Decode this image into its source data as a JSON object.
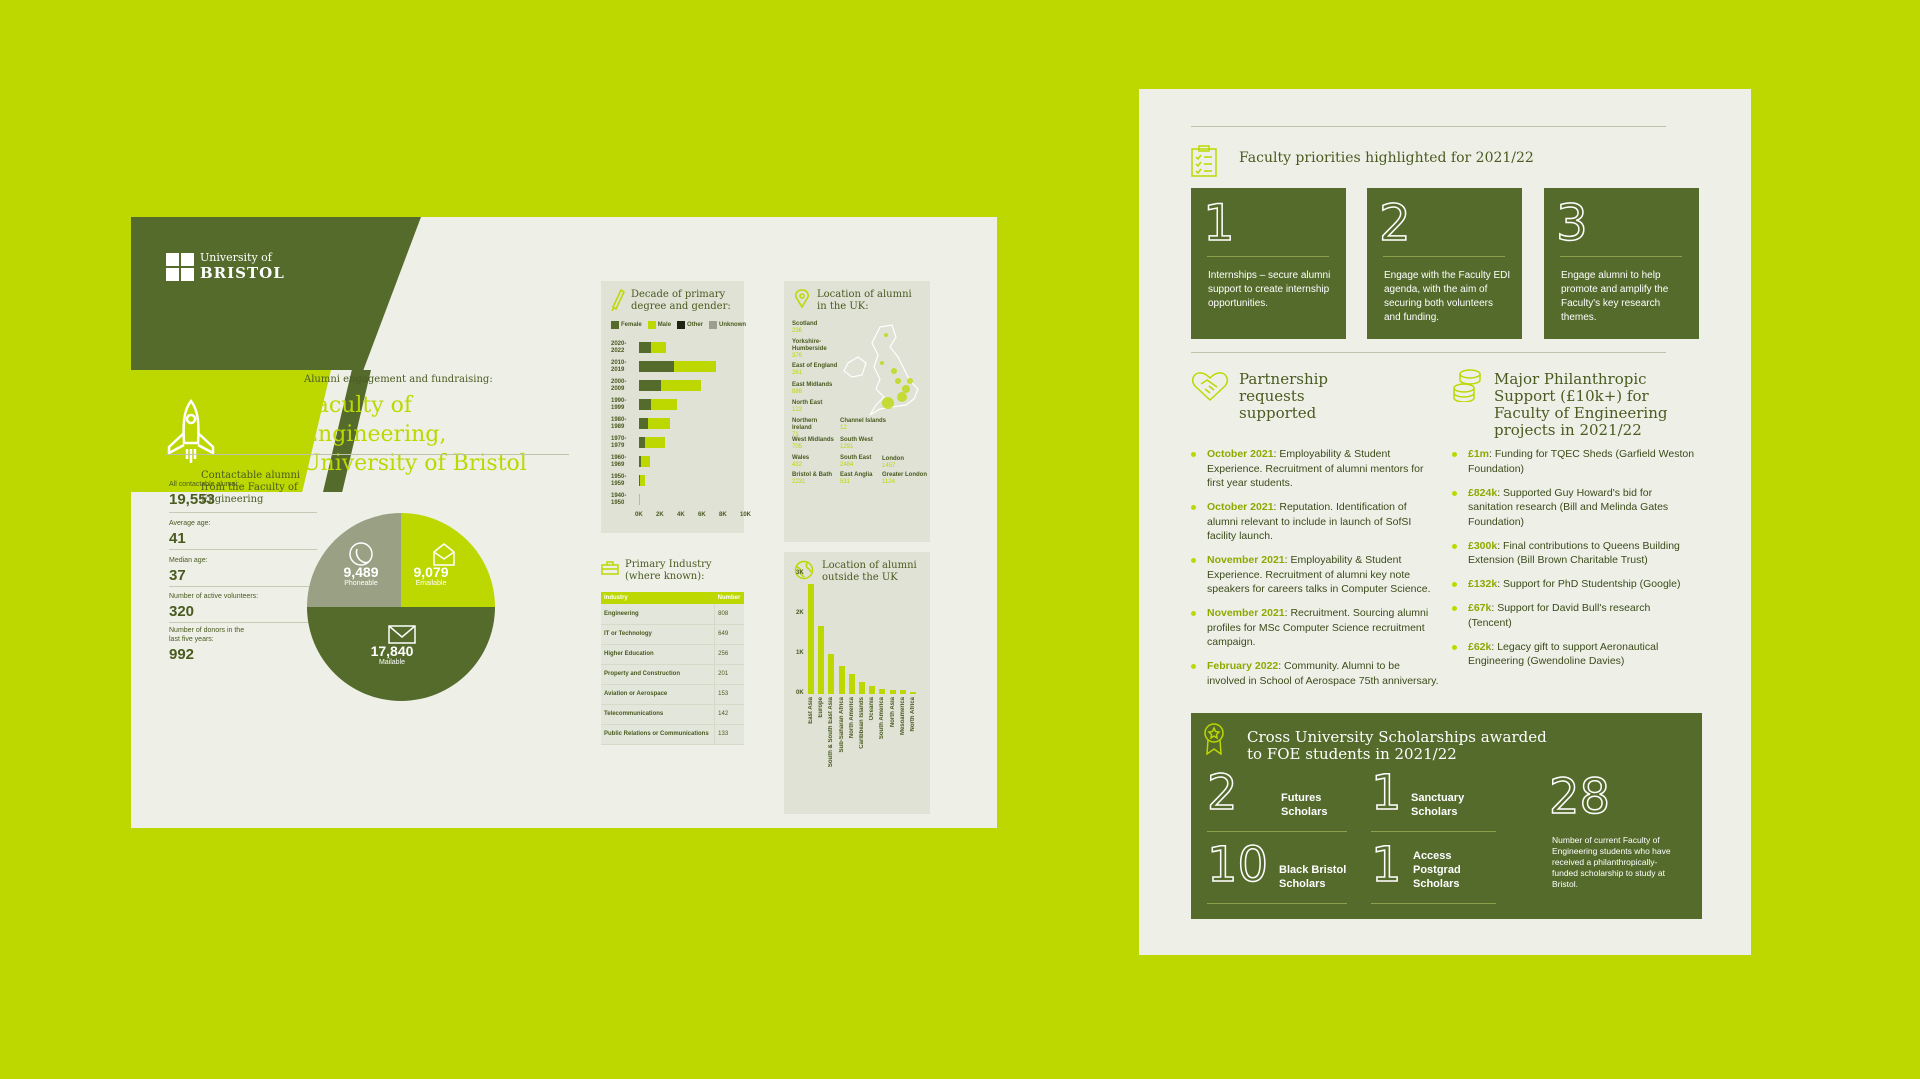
{
  "sheet1": {
    "logo": {
      "line1": "University of",
      "line2": "BRISTOL"
    },
    "subtitle": "Alumni engagement and fundraising:",
    "title": "Faculty of Engineering, University of Bristol",
    "contact_heading": "Contactable alumni from the Faculty of Engineering",
    "stats": [
      {
        "label": "All contactable alumni:",
        "value": "19,553"
      },
      {
        "label": "Average age:",
        "value": "41"
      },
      {
        "label": "Median age:",
        "value": "37"
      },
      {
        "label": "Number of active volunteers:",
        "value": "320"
      },
      {
        "label": "Number of donors in the last five years:",
        "value": "992"
      }
    ],
    "pie": [
      {
        "value": "9,489",
        "label": "Phoneable",
        "icon": "phone-icon",
        "color": "#9aa083"
      },
      {
        "value": "9,079",
        "label": "Emailable",
        "icon": "email-icon",
        "color": "#bcd800"
      },
      {
        "value": "17,840",
        "label": "Mailable",
        "icon": "mail-icon",
        "color": "#546b2c"
      }
    ],
    "decade": {
      "title": "Decade of primary degree and gender:",
      "legend": [
        {
          "name": "Female",
          "color": "#546b2c"
        },
        {
          "name": "Male",
          "color": "#bcd800"
        },
        {
          "name": "Other",
          "color": "#1e2410"
        },
        {
          "name": "Unknown",
          "color": "#9c9f8e"
        }
      ],
      "rows": [
        {
          "label": "2020- 2022",
          "female": 1.0,
          "male": 1.2
        },
        {
          "label": "2010- 2019",
          "female": 2.8,
          "male": 3.4
        },
        {
          "label": "2000- 2009",
          "female": 1.8,
          "male": 3.2
        },
        {
          "label": "1990- 1999",
          "female": 1.0,
          "male": 2.1
        },
        {
          "label": "1980- 1989",
          "female": 0.7,
          "male": 1.8
        },
        {
          "label": "1970- 1979",
          "female": 0.5,
          "male": 1.6
        },
        {
          "label": "1960- 1969",
          "female": 0.2,
          "male": 0.7
        },
        {
          "label": "1950- 1959",
          "female": 0.1,
          "male": 0.4
        },
        {
          "label": "1940- 1950",
          "female": 0.0,
          "male": 0.1
        }
      ],
      "xticks": [
        "0K",
        "2K",
        "4K",
        "6K",
        "8K",
        "10K"
      ]
    },
    "location_uk": {
      "title": "Location of alumni in the UK:",
      "regions": [
        {
          "name": "Scotland",
          "value": "236"
        },
        {
          "name": "Yorkshire- Humberside",
          "value": "376"
        },
        {
          "name": "East of England",
          "value": "261"
        },
        {
          "name": "East Midlands",
          "value": "886"
        },
        {
          "name": "North East",
          "value": "122"
        },
        {
          "name": "Northern Ireland",
          "value": "71"
        },
        {
          "name": "Channel Islands",
          "value": "12"
        },
        {
          "name": "West Midlands",
          "value": "705"
        },
        {
          "name": "South West",
          "value": "1291"
        },
        {
          "name": "Wales",
          "value": "432"
        },
        {
          "name": "South East",
          "value": "2484"
        },
        {
          "name": "London",
          "value": "1457"
        },
        {
          "name": "Bristol & Bath",
          "value": "2231"
        },
        {
          "name": "East Anglia",
          "value": "531"
        },
        {
          "name": "Greater London",
          "value": "1124"
        }
      ]
    },
    "industry": {
      "title": "Primary Industry (where known):",
      "headers": [
        "Industry",
        "Number"
      ],
      "rows": [
        [
          "Engineering",
          "808"
        ],
        [
          "IT or Technology",
          "649"
        ],
        [
          "Higher Education",
          "256"
        ],
        [
          "Property and Construction",
          "201"
        ],
        [
          "Aviation or Aerospace",
          "153"
        ],
        [
          "Telecommunications",
          "142"
        ],
        [
          "Public Relations or Communications",
          "133"
        ]
      ]
    },
    "location_world": {
      "title": "Location of alumni outside the UK",
      "yticks": [
        "3K",
        "2K",
        "1K",
        "0K"
      ]
    }
  },
  "chart_data": [
    {
      "type": "bar",
      "title": "Decade of primary degree and gender:",
      "categories": [
        "2020-2022",
        "2010-2019",
        "2000-2009",
        "1990-1999",
        "1980-1989",
        "1970-1979",
        "1960-1969",
        "1950-1959",
        "1940-1950"
      ],
      "series": [
        {
          "name": "Female",
          "values": [
            1.0,
            2.8,
            1.8,
            1.0,
            0.7,
            0.5,
            0.2,
            0.1,
            0.0
          ]
        },
        {
          "name": "Male",
          "values": [
            1.2,
            3.4,
            3.2,
            2.1,
            1.8,
            1.6,
            0.7,
            0.4,
            0.1
          ]
        }
      ],
      "xlim": [
        0,
        10
      ],
      "orientation": "horizontal"
    },
    {
      "type": "bar",
      "title": "Location of alumni outside the UK",
      "categories": [
        "East Asia",
        "Europe",
        "South & South East Asia",
        "Sub-Saharan Africa",
        "North America",
        "Caribbean Islands",
        "Oceania",
        "South America",
        "North Asia",
        "Mesoamerica",
        "North Africa"
      ],
      "values": [
        2.75,
        1.7,
        1.0,
        0.7,
        0.5,
        0.3,
        0.2,
        0.12,
        0.1,
        0.1,
        0.05
      ],
      "ylim": [
        0,
        3
      ]
    }
  ],
  "sheet2": {
    "priorities_title": "Faculty priorities highlighted for 2021/22",
    "priorities": [
      {
        "num": "1",
        "text": "Internships – secure alumni support to create internship opportunities."
      },
      {
        "num": "2",
        "text": "Engage with the Faculty EDI agenda, with the aim of securing both volunteers and funding."
      },
      {
        "num": "3",
        "text": "Engage alumni to help promote and amplify the Faculty's key research themes."
      }
    ],
    "partnership_title": "Partnership requests supported",
    "partnership": [
      {
        "date": "October 2021",
        "text": ": Employability & Student Experience. Recruitment of alumni mentors for first year students."
      },
      {
        "date": "October 2021",
        "text": ": Reputation. Identification of alumni relevant to include in launch of SofSI facility launch."
      },
      {
        "date": "November 2021",
        "text": ": Employability & Student Experience. Recruitment of alumni key note speakers for careers talks in Computer Science."
      },
      {
        "date": "November 2021",
        "text": ": Recruitment. Sourcing alumni profiles for MSc Computer Science recruitment campaign."
      },
      {
        "date": "February 2022",
        "text": ": Community. Alumni to be involved in School of Aerospace 75th anniversary."
      }
    ],
    "philanthropic_title": "Major Philanthropic Support (£10k+) for Faculty of Engineering projects in 2021/22",
    "philanthropic": [
      {
        "amount": "£1m",
        "text": ": Funding for TQEC Sheds (Garfield Weston Foundation)"
      },
      {
        "amount": "£824k",
        "text": ": Supported Guy Howard's bid for sanitation research (Bill and Melinda Gates Foundation)"
      },
      {
        "amount": "£300k",
        "text": ": Final contributions to Queens Building Extension (Bill Brown Charitable Trust)"
      },
      {
        "amount": "£132k",
        "text": ": Support for PhD Studentship (Google)"
      },
      {
        "amount": "£67k",
        "text": ": Support for David Bull's research (Tencent)"
      },
      {
        "amount": "£62k",
        "text": ": Legacy gift to support Aeronautical Engineering (Gwendoline Davies)"
      }
    ],
    "scholarships_title": "Cross University Scholarships awarded to FOE students in 2021/22",
    "scholarships": [
      {
        "num": "2",
        "label": "Futures Scholars"
      },
      {
        "num": "1",
        "label": "Sanctuary Scholars"
      },
      {
        "num": "10",
        "label": "Black Bristol Scholars"
      },
      {
        "num": "1",
        "label": "Access Postgrad Scholars"
      }
    ],
    "total": {
      "num": "28",
      "text": "Number of current Faculty of Engineering students who have received a philanthropically-funded scholarship to study at Bristol."
    }
  }
}
